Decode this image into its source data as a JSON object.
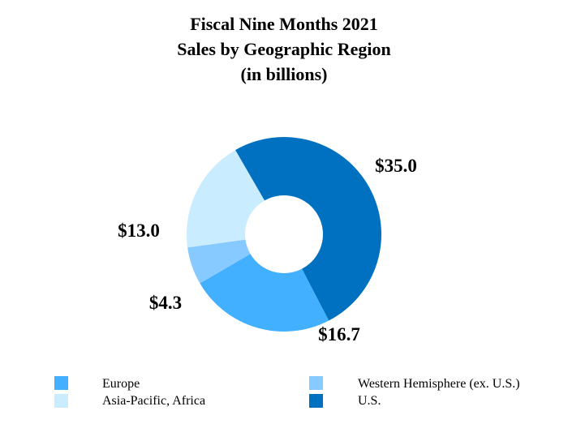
{
  "chart_data": {
    "type": "pie",
    "title_lines": [
      "Fiscal Nine Months 2021",
      "Sales by Geographic Region",
      "(in billions)"
    ],
    "slices": [
      {
        "name": "U.S.",
        "value": 35.0,
        "label": "$35.0",
        "color": "#0070c0"
      },
      {
        "name": "Europe",
        "value": 16.7,
        "label": "$16.7",
        "color": "#42afff"
      },
      {
        "name": "Western Hemisphere (ex. U.S.)",
        "value": 4.3,
        "label": "$4.3",
        "color": "#86caff"
      },
      {
        "name": "Asia-Pacific, Africa",
        "value": 13.0,
        "label": "$13.0",
        "color": "#caecff"
      }
    ],
    "legend": [
      {
        "name": "Europe",
        "color": "#42afff"
      },
      {
        "name": "Western Hemisphere (ex. U.S.)",
        "color": "#86caff"
      },
      {
        "name": "Asia-Pacific, Africa",
        "color": "#caecff"
      },
      {
        "name": "U.S.",
        "color": "#0070c0"
      }
    ],
    "legend_position": "bottom"
  }
}
